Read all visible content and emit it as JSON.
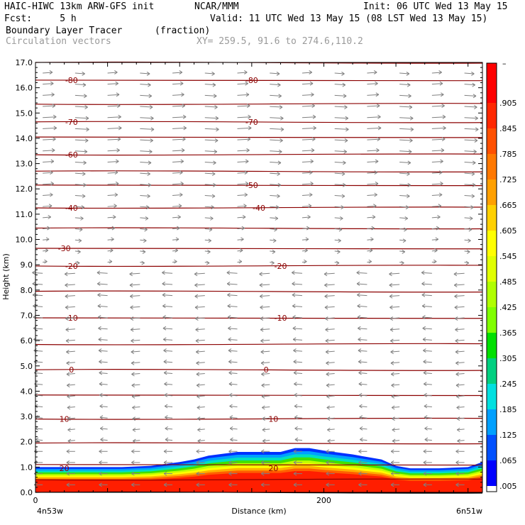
{
  "header": {
    "line1_left": "HAIC-HIWC 13km ARW-GFS init",
    "line1_mid": "NCAR/MMM",
    "line1_right": "Init: 06 UTC Wed 13 May 15",
    "line2_left": "Fcst:     5 h",
    "line2_right": "Valid: 11 UTC Wed 13 May 15 (08 LST Wed 13 May 15)",
    "line3_field": "Boundary Layer Tracer",
    "line3_unit": "(fraction)",
    "line4_field": "Circulation vectors",
    "line4_xy": "XY= 259.5, 91.6 to 274.6,110.2"
  },
  "chart_data": {
    "type": "heatmap",
    "ylabel": "Height (km)",
    "xlabel": "Distance (km)",
    "ylim": [
      0,
      17
    ],
    "xlim": [
      0,
      310
    ],
    "y_ticks": [
      "0.0",
      "1.0",
      "2.0",
      "3.0",
      "4.0",
      "5.0",
      "6.0",
      "7.0",
      "8.0",
      "9.0",
      "10.0",
      "11.0",
      "12.0",
      "13.0",
      "14.0",
      "15.0",
      "16.0",
      "17.0"
    ],
    "x_ticks": [
      {
        "value": 0,
        "label": "0"
      },
      {
        "value": 200,
        "label": "200"
      }
    ],
    "x_end_labels": {
      "left": "4n53w",
      "right": "6n51w"
    },
    "colorbar": {
      "labels": [
        ".005",
        ".065",
        ".125",
        ".185",
        ".245",
        ".305",
        ".365",
        ".425",
        ".485",
        ".545",
        ".605",
        ".665",
        ".725",
        ".785",
        ".845",
        ".905"
      ],
      "top_label": "–",
      "colors": [
        "#0000ff",
        "#0050ff",
        "#00a0ff",
        "#00e0e0",
        "#00d080",
        "#00e000",
        "#80ff00",
        "#b0ff00",
        "#e0ff00",
        "#ffff00",
        "#ffd000",
        "#ffa000",
        "#ff7800",
        "#ff5000",
        "#ff2800",
        "#ff0000"
      ]
    },
    "contour_levels": [
      -80,
      -70,
      -60,
      -50,
      -40,
      -30,
      -20,
      -10,
      0,
      10,
      20
    ],
    "contour_color": "#8b0000",
    "tracer_top_km": {
      "x": [
        0,
        20,
        40,
        60,
        80,
        100,
        110,
        120,
        140,
        160,
        170,
        180,
        190,
        200,
        220,
        240,
        250,
        260,
        280,
        300,
        310
      ],
      "y": [
        1.0,
        1.0,
        1.0,
        1.0,
        1.05,
        1.2,
        1.3,
        1.45,
        1.6,
        1.6,
        1.6,
        1.75,
        1.75,
        1.65,
        1.5,
        1.3,
        1.05,
        0.95,
        0.95,
        1.0,
        1.2
      ]
    },
    "vector_color": "#808080"
  }
}
